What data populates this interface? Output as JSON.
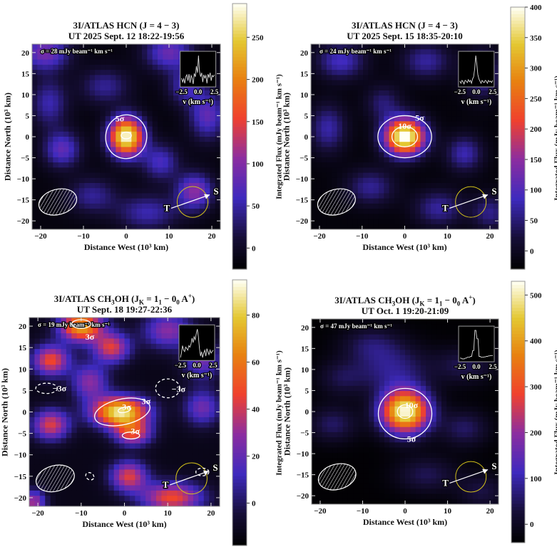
{
  "figure": {
    "xlabel": "Distance West (10³ km)",
    "ylabel": "Distance North (10³ km)",
    "colorbar_label": "Integrated Flux (mJy beam⁻¹ km s⁻¹)",
    "inset_xlabel": "v (km s⁻¹)",
    "inset_ticks": [
      "−2.5",
      "0.0",
      "2.5"
    ],
    "x_ticks": [
      -20,
      -10,
      0,
      10,
      20
    ],
    "y_ticks": [
      -20,
      -15,
      -10,
      -5,
      0,
      5,
      10,
      15,
      20
    ],
    "x_tick_labels": [
      "−20",
      "−10",
      "0",
      "10",
      "20"
    ],
    "y_tick_labels": [
      "−20",
      "−15",
      "−10",
      "−5",
      "0",
      "5",
      "10",
      "15",
      "20"
    ],
    "marker_T": "T",
    "marker_S": "S",
    "colors": {
      "contour": "#ffffff",
      "circle": "#d4c21a",
      "frame": "#8a8a8a"
    }
  },
  "chart_data": [
    {
      "type": "heatmap",
      "title_parts": [
        {
          "t": "3I/ATLAS HCN (J = 4 − 3)"
        }
      ],
      "subtitle": "UT 2025 Sept. 12 18:22-19:56",
      "sigma_label": "σ = 28 mJy beam⁻¹ km s⁻¹",
      "xlim": [
        -22,
        22
      ],
      "ylim": [
        -22,
        22
      ],
      "colorbar": {
        "range": [
          -25,
          290
        ],
        "ticks": [
          0,
          50,
          100,
          150,
          200,
          250
        ]
      },
      "baseline": -15,
      "components": [
        {
          "x": 0,
          "y": 0,
          "sx": 2.8,
          "sy": 3.2,
          "amp": 305
        },
        {
          "x": -15,
          "y": -3,
          "sx": 3,
          "sy": 3,
          "amp": 95
        },
        {
          "x": 16,
          "y": -13,
          "sx": 3,
          "sy": 3,
          "amp": 120
        },
        {
          "x": 8,
          "y": -6,
          "sx": 3,
          "sy": 3,
          "amp": 80
        },
        {
          "x": -19,
          "y": 20,
          "sx": 4,
          "sy": 3,
          "amp": 110
        },
        {
          "x": 10,
          "y": 20,
          "sx": 4,
          "sy": 3,
          "amp": 100
        },
        {
          "x": 19,
          "y": 5,
          "sx": 3,
          "sy": 4,
          "amp": 95
        },
        {
          "x": -5,
          "y": 12,
          "sx": 4,
          "sy": 3,
          "amp": 60
        },
        {
          "x": -18,
          "y": 8,
          "sx": 3,
          "sy": 4,
          "amp": 70
        },
        {
          "x": 5,
          "y": -18,
          "sx": 5,
          "sy": 3,
          "amp": 70
        },
        {
          "x": -8,
          "y": -14,
          "sx": 4,
          "sy": 3,
          "amp": 60
        },
        {
          "x": 14,
          "y": 12,
          "sx": 3,
          "sy": 3,
          "amp": 75
        }
      ],
      "contours": [
        {
          "level": "5σ",
          "x": 0,
          "y": 0,
          "rx": 4.8,
          "ry": 5.2,
          "rot": 10,
          "dashed": false,
          "label_at": [
            -1.5,
            4.3
          ]
        },
        {
          "level": "",
          "x": 0,
          "y": 0.3,
          "rx": 1.2,
          "ry": 0.8,
          "rot": 0,
          "dashed": false
        }
      ],
      "spectrum": [
        0.1,
        -0.2,
        0.05,
        -0.3,
        0.2,
        0.35,
        -0.1,
        0.4,
        -0.25,
        0.3,
        0.1,
        -0.35,
        0.45,
        0.2,
        1.0,
        0.5,
        1.8,
        0.6,
        0.2,
        0.5,
        -0.2,
        0.35,
        0.1,
        0.3,
        -0.3,
        0.4,
        0.15,
        0.5,
        -0.1,
        0.3,
        0.2,
        0.35
      ]
    },
    {
      "type": "heatmap",
      "title_parts": [
        {
          "t": "3I/ATLAS HCN (J = 4 − 3)"
        }
      ],
      "subtitle": "UT 2025 Sept. 15 18:35-20:10",
      "sigma_label": "σ = 24 mJy beam⁻¹ km s⁻¹",
      "xlim": [
        -22,
        22
      ],
      "ylim": [
        -22,
        22
      ],
      "colorbar": {
        "range": [
          -30,
          400
        ],
        "ticks": [
          0,
          50,
          100,
          150,
          200,
          250,
          300,
          350,
          400
        ]
      },
      "baseline": -20,
      "components": [
        {
          "x": 0,
          "y": 0,
          "sx": 3.3,
          "sy": 3.0,
          "amp": 440
        },
        {
          "x": -15,
          "y": 18,
          "sx": 4,
          "sy": 3,
          "amp": 110
        },
        {
          "x": 5,
          "y": 18,
          "sx": 4,
          "sy": 3,
          "amp": 90
        },
        {
          "x": 18,
          "y": 15,
          "sx": 3,
          "sy": 4,
          "amp": 100
        },
        {
          "x": -18,
          "y": 2,
          "sx": 3,
          "sy": 4,
          "amp": 95
        },
        {
          "x": 14,
          "y": -4,
          "sx": 3,
          "sy": 3,
          "amp": 100
        },
        {
          "x": -8,
          "y": -12,
          "sx": 4,
          "sy": 3,
          "amp": 85
        },
        {
          "x": 8,
          "y": -17,
          "sx": 4,
          "sy": 3,
          "amp": 90
        },
        {
          "x": 20,
          "y": -18,
          "sx": 3,
          "sy": 3,
          "amp": 80
        },
        {
          "x": -5,
          "y": 8,
          "sx": 3,
          "sy": 3,
          "amp": 70
        }
      ],
      "contours": [
        {
          "level": "5σ",
          "x": 0,
          "y": 0,
          "rx": 6.3,
          "ry": 5.0,
          "rot": 0,
          "dashed": false,
          "label_at": [
            3.5,
            4.5
          ]
        },
        {
          "level": "10σ",
          "x": 0,
          "y": 0,
          "rx": 3.0,
          "ry": 2.4,
          "rot": 0,
          "dashed": false,
          "label_at": [
            0,
            2.5
          ]
        }
      ],
      "spectrum": [
        0.05,
        -0.1,
        0.1,
        0.0,
        -0.15,
        0.1,
        0.05,
        -0.05,
        0.15,
        0.0,
        0.1,
        -0.1,
        0.2,
        0.35,
        0.9,
        1.8,
        1.2,
        0.5,
        0.2,
        0.05,
        -0.1,
        0.1,
        0.0,
        -0.05,
        0.1,
        0.05,
        -0.1,
        0.1,
        0.0,
        0.05,
        -0.05,
        0.1
      ]
    },
    {
      "type": "heatmap",
      "title_parts": [
        {
          "t": "3I/ATLAS CH"
        },
        {
          "t": "3",
          "sub": true
        },
        {
          "t": "OH (J"
        },
        {
          "t": "K",
          "sub": true
        },
        {
          "t": " = 1"
        },
        {
          "t": "1",
          "sub": true
        },
        {
          "t": " − 0"
        },
        {
          "t": "0",
          "sub": true
        },
        {
          "t": " A"
        },
        {
          "t": "+",
          "sup": true
        },
        {
          "t": ")"
        }
      ],
      "subtitle": "UT Sept. 18 19:27-22:36",
      "sigma_label": "σ = 19 mJy beam⁻¹ km s⁻¹",
      "xlim": [
        -22,
        22
      ],
      "ylim": [
        -22,
        22
      ],
      "colorbar": {
        "range": [
          -18,
          95
        ],
        "ticks": [
          0,
          20,
          40,
          60,
          80
        ]
      },
      "baseline": -12,
      "components": [
        {
          "x": -1,
          "y": 0,
          "sx": 4.5,
          "sy": 2.5,
          "amp": 100
        },
        {
          "x": 2,
          "y": -5,
          "sx": 3,
          "sy": 2,
          "amp": 55
        },
        {
          "x": -10,
          "y": 20,
          "sx": 3.5,
          "sy": 2.5,
          "amp": 85
        },
        {
          "x": -17,
          "y": 12,
          "sx": 3,
          "sy": 2.5,
          "amp": 60
        },
        {
          "x": -3,
          "y": 15,
          "sx": 3,
          "sy": 2.5,
          "amp": 55
        },
        {
          "x": -17,
          "y": -3,
          "sx": 3,
          "sy": 2.5,
          "amp": 55
        },
        {
          "x": 1,
          "y": -15,
          "sx": 3,
          "sy": 2.5,
          "amp": 55
        },
        {
          "x": 11,
          "y": -20,
          "sx": 5,
          "sy": 2.5,
          "amp": 60
        },
        {
          "x": 10,
          "y": 19,
          "sx": 4,
          "sy": 3,
          "amp": 40
        },
        {
          "x": -8,
          "y": 7,
          "sx": 3,
          "sy": 3,
          "amp": 40
        },
        {
          "x": 18,
          "y": 1,
          "sx": 3,
          "sy": 3,
          "amp": 35
        },
        {
          "x": 18,
          "y": 12,
          "sx": 3,
          "sy": 3,
          "amp": 35
        },
        {
          "x": -21,
          "y": -21,
          "sx": 2,
          "sy": 2,
          "amp": 45
        }
      ],
      "contours": [
        {
          "level": "3σ",
          "x": -0.5,
          "y": 0,
          "rx": 6.5,
          "ry": 3.0,
          "rot": -12,
          "dashed": false,
          "label_at": [
            5,
            2.5
          ]
        },
        {
          "level": "3σ",
          "x": 0,
          "y": 0.5,
          "rx": 1.5,
          "ry": 0.6,
          "rot": -12,
          "dashed": false,
          "label_at": [
            0.5,
            1.2
          ]
        },
        {
          "level": "3σ",
          "x": 1.5,
          "y": -5.5,
          "rx": 2.0,
          "ry": 0.8,
          "rot": 0,
          "dashed": false,
          "label_at": [
            2.5,
            -4.5
          ]
        },
        {
          "level": "3σ",
          "x": -10,
          "y": 20.5,
          "rx": 2.2,
          "ry": 1.0,
          "rot": 0,
          "dashed": false,
          "label_at": [
            -8,
            21.5
          ]
        },
        {
          "level": "−3σ",
          "x": -18,
          "y": 5.5,
          "rx": 2.5,
          "ry": 1.2,
          "rot": 0,
          "dashed": true,
          "label_at": [
            -15,
            5.5
          ]
        },
        {
          "level": "−3σ",
          "x": 10,
          "y": 5.5,
          "rx": 2.8,
          "ry": 2.2,
          "rot": 0,
          "dashed": true,
          "label_at": [
            12.5,
            8
          ]
        },
        {
          "level": "",
          "x": -8,
          "y": -15,
          "rx": 1.0,
          "ry": 0.8,
          "rot": 30,
          "dashed": true
        },
        {
          "level": "",
          "x": 18,
          "y": -14,
          "rx": 1.5,
          "ry": 0.9,
          "rot": 0,
          "dashed": true
        }
      ],
      "spectrum": [
        -0.2,
        0.1,
        0.6,
        0.3,
        0.2,
        0.5,
        0.4,
        0.3,
        0.6,
        0.5,
        0.7,
        1.1,
        0.8,
        1.2,
        1.0,
        1.4,
        1.7,
        1.2,
        0.4,
        -0.1,
        0.2,
        -0.2,
        0.1,
        0.3,
        -0.1,
        0.4,
        0.2,
        0.0,
        0.3,
        0.1,
        0.2,
        0.3
      ]
    },
    {
      "type": "heatmap",
      "title_parts": [
        {
          "t": "3I/ATLAS CH"
        },
        {
          "t": "3",
          "sub": true
        },
        {
          "t": "OH (J"
        },
        {
          "t": "K",
          "sub": true
        },
        {
          "t": " = 1"
        },
        {
          "t": "1",
          "sub": true
        },
        {
          "t": " − 0"
        },
        {
          "t": "0",
          "sub": true
        },
        {
          "t": " A"
        },
        {
          "t": "+",
          "sup": true
        },
        {
          "t": ")"
        }
      ],
      "subtitle": "UT Oct. 1 19:20-21:09",
      "sigma_label": "σ = 47 mJy beam⁻¹ km s⁻¹",
      "xlim": [
        -22,
        22
      ],
      "ylim": [
        -22,
        22
      ],
      "colorbar": {
        "range": [
          -40,
          530
        ],
        "ticks": [
          0,
          100,
          200,
          300,
          400,
          500
        ]
      },
      "baseline": -35,
      "components": [
        {
          "x": 0,
          "y": 0,
          "sx": 4.0,
          "sy": 3.6,
          "amp": 560
        },
        {
          "x": -3,
          "y": 10,
          "sx": 6,
          "sy": 4,
          "amp": 110
        },
        {
          "x": -8,
          "y": 16,
          "sx": 5,
          "sy": 3,
          "amp": 80
        },
        {
          "x": 14,
          "y": 11,
          "sx": 5,
          "sy": 3,
          "amp": 80
        },
        {
          "x": -17,
          "y": -3,
          "sx": 4,
          "sy": 3,
          "amp": 90
        },
        {
          "x": 14,
          "y": -4,
          "sx": 4,
          "sy": 3,
          "amp": 90
        },
        {
          "x": 5,
          "y": -15,
          "sx": 5,
          "sy": 3,
          "amp": 80
        },
        {
          "x": -15,
          "y": 8,
          "sx": 4,
          "sy": 3,
          "amp": 70
        },
        {
          "x": 18,
          "y": -19,
          "sx": 4,
          "sy": 3,
          "amp": 70
        }
      ],
      "contours": [
        {
          "level": "5σ",
          "x": 0,
          "y": -0.5,
          "rx": 6.3,
          "ry": 6.0,
          "rot": 0,
          "dashed": false,
          "label_at": [
            1.5,
            -6.5
          ]
        },
        {
          "level": "10σ",
          "x": 0,
          "y": 0,
          "rx": 1.8,
          "ry": 1.6,
          "rot": 0,
          "dashed": false,
          "label_at": [
            1.5,
            1.5
          ]
        }
      ],
      "spectrum": [
        0.05,
        0.05,
        0.0,
        0.0,
        0.0,
        0.05,
        0.05,
        0.1,
        0.1,
        0.1,
        0.15,
        0.15,
        0.5,
        0.5,
        1.7,
        1.7,
        1.2,
        1.2,
        0.15,
        0.15,
        0.1,
        0.1,
        0.1,
        0.12,
        0.12,
        0.15,
        0.15,
        0.18,
        0.18,
        0.2,
        0.2,
        0.2
      ]
    }
  ]
}
